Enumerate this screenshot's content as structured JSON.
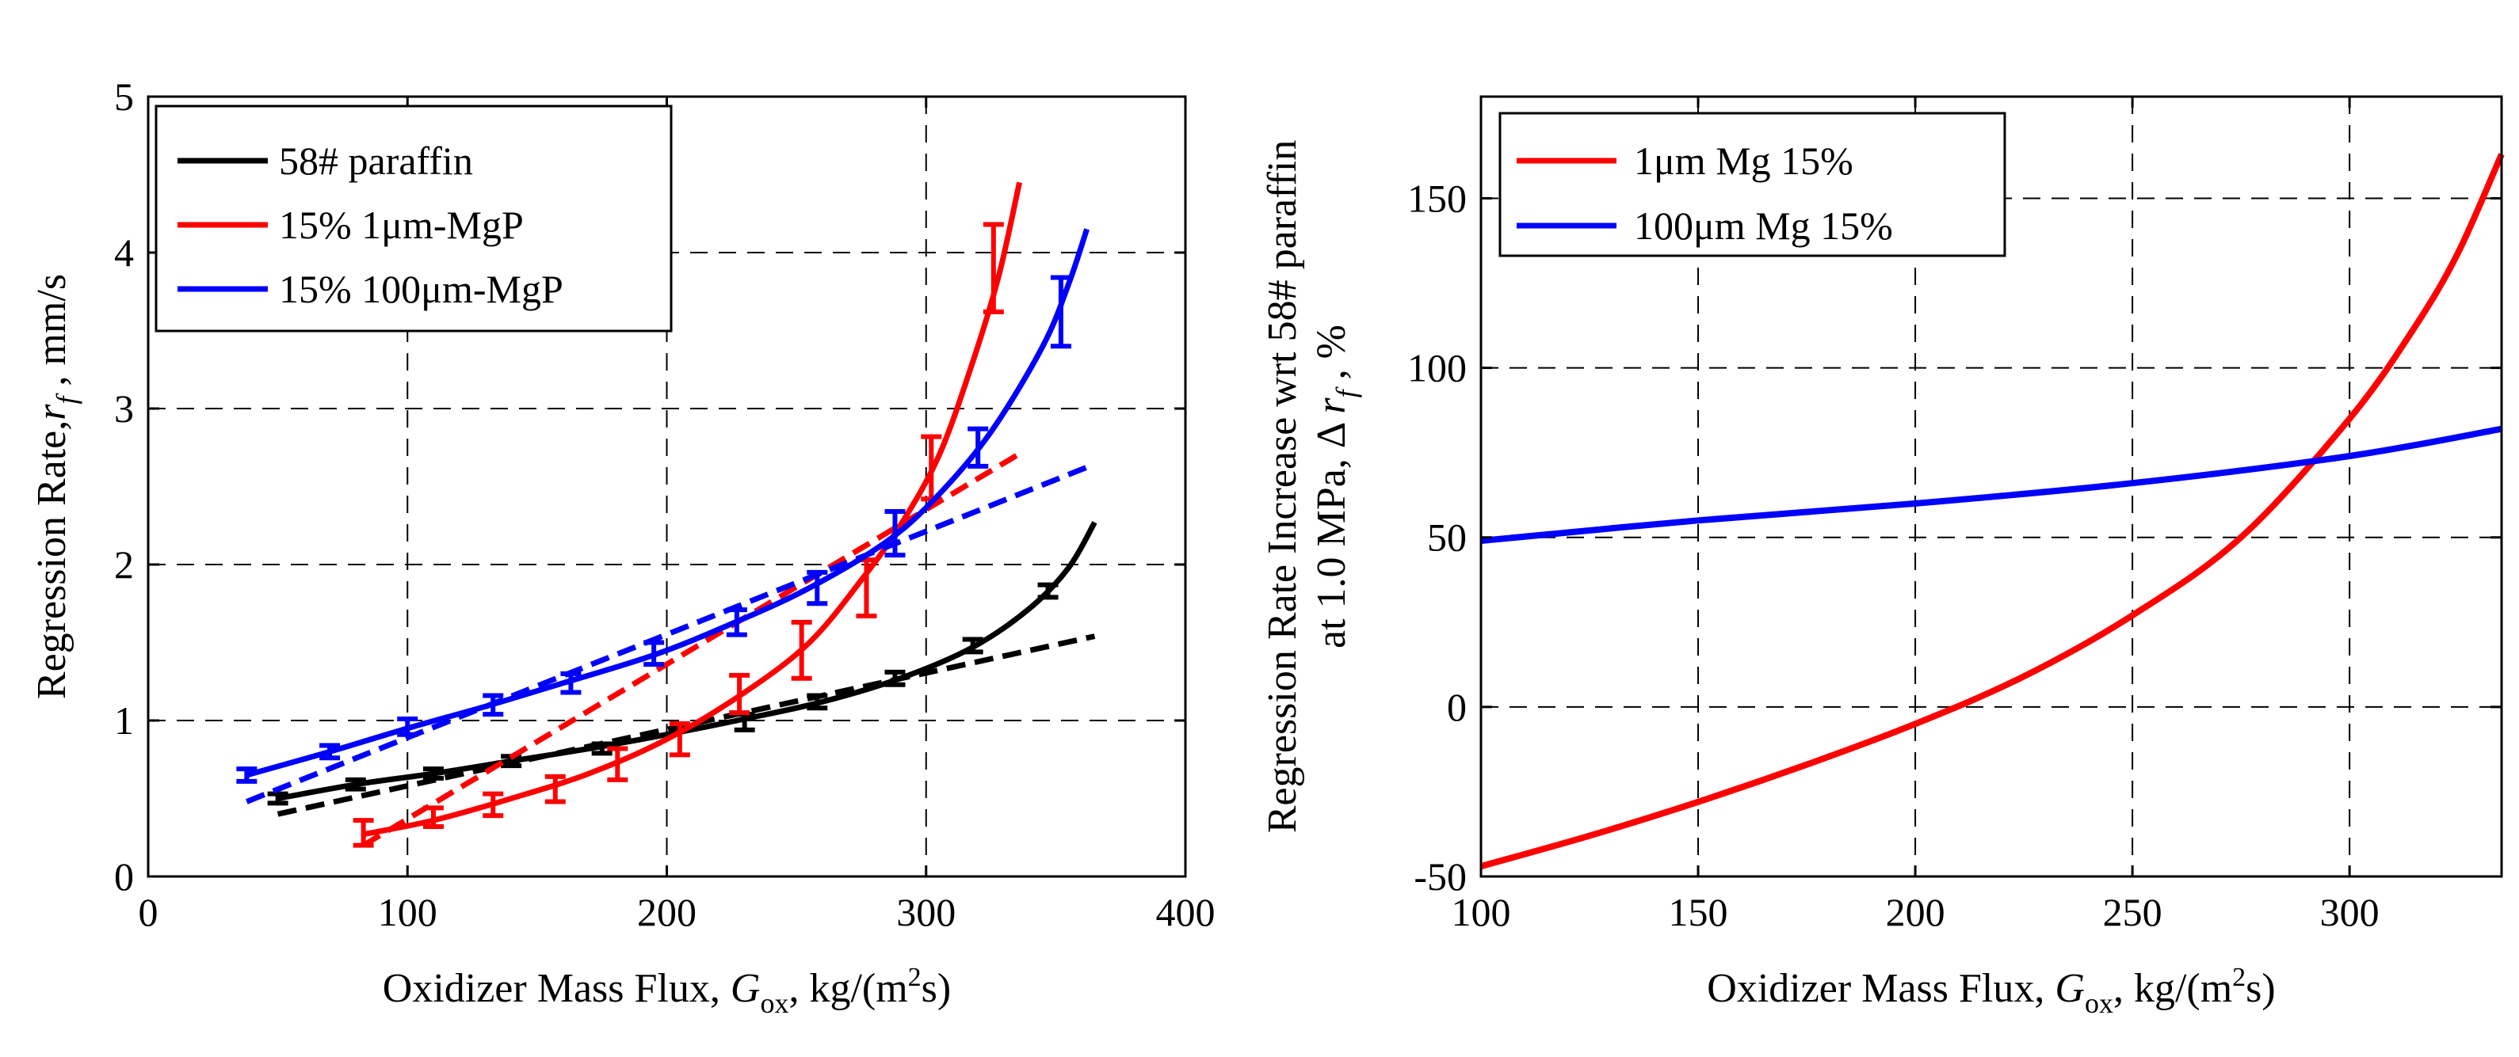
{
  "chart_data": [
    {
      "type": "line",
      "title": "",
      "xlabel_prefix": "Oxidizer Mass Flux, ",
      "xlabel_symbol": "G",
      "xlabel_sub": "ox",
      "xlabel_suffix_1": ", kg/(m",
      "xlabel_sup": "2",
      "xlabel_suffix_2": "s)",
      "ylabel_prefix": "Regression Rate,",
      "ylabel_symbol": "r",
      "ylabel_sub": "f",
      "ylabel_suffix": " , mm/s",
      "xlim": [
        0,
        400
      ],
      "ylim": [
        0,
        5
      ],
      "xticks": [
        0,
        100,
        200,
        300,
        400
      ],
      "yticks": [
        0,
        1,
        2,
        3,
        4,
        5
      ],
      "xtick_labels": [
        "0",
        "100",
        "200",
        "300",
        "400"
      ],
      "ytick_labels": [
        "0",
        "1",
        "2",
        "3",
        "4",
        "5"
      ],
      "grid": true,
      "legend_position": "top-left",
      "legend": [
        "58# paraffin",
        "15% 1μm-MgP",
        "15% 100μm-MgP"
      ],
      "series": [
        {
          "name": "58# paraffin",
          "color": "#000000",
          "smooth_x": [
            50,
            80,
            110,
            140,
            170,
            200,
            230,
            260,
            290,
            318,
            340,
            355,
            365
          ],
          "smooth_y": [
            0.5,
            0.59,
            0.66,
            0.74,
            0.82,
            0.91,
            1.01,
            1.12,
            1.27,
            1.47,
            1.72,
            1.98,
            2.27
          ],
          "fit_x": [
            50,
            365
          ],
          "fit_y": [
            0.4,
            1.54
          ],
          "markers_x": [
            50,
            80,
            110,
            140,
            175,
            230,
            258,
            288,
            318,
            347
          ],
          "markers_y": [
            0.5,
            0.59,
            0.66,
            0.74,
            0.82,
            0.99,
            1.12,
            1.27,
            1.48,
            1.83
          ],
          "err": [
            0.03,
            0.03,
            0.03,
            0.03,
            0.03,
            0.05,
            0.04,
            0.04,
            0.04,
            0.04
          ]
        },
        {
          "name": "15% 1μm-MgP",
          "color": "#ff0000",
          "smooth_x": [
            83,
            110,
            140,
            170,
            200,
            230,
            255,
            275,
            290,
            305,
            318,
            328,
            336
          ],
          "smooth_y": [
            0.27,
            0.36,
            0.5,
            0.66,
            0.88,
            1.18,
            1.5,
            1.9,
            2.25,
            2.7,
            3.3,
            3.85,
            4.45
          ],
          "fit_x": [
            83,
            335
          ],
          "fit_y": [
            0.2,
            2.7
          ],
          "markers_x": [
            83,
            110,
            133,
            157,
            181,
            205,
            228,
            252,
            277,
            302,
            326
          ],
          "markers_y": [
            0.28,
            0.38,
            0.46,
            0.56,
            0.72,
            0.88,
            1.17,
            1.45,
            1.85,
            2.62,
            3.9
          ],
          "err": [
            0.08,
            0.06,
            0.07,
            0.08,
            0.1,
            0.1,
            0.12,
            0.18,
            0.18,
            0.2,
            0.28
          ]
        },
        {
          "name": "15% 100μm-MgP",
          "color": "#0000ff",
          "smooth_x": [
            38,
            70,
            100,
            130,
            160,
            195,
            225,
            255,
            285,
            305,
            325,
            345,
            355,
            362
          ],
          "smooth_y": [
            0.65,
            0.8,
            0.95,
            1.09,
            1.24,
            1.42,
            1.62,
            1.85,
            2.15,
            2.45,
            2.85,
            3.4,
            3.8,
            4.15
          ],
          "fit_x": [
            38,
            363
          ],
          "fit_y": [
            0.48,
            2.63
          ],
          "markers_x": [
            38,
            70,
            100,
            133,
            163,
            195,
            227,
            258,
            288,
            320,
            352
          ],
          "markers_y": [
            0.65,
            0.8,
            0.96,
            1.1,
            1.24,
            1.43,
            1.63,
            1.85,
            2.2,
            2.75,
            3.62
          ],
          "err": [
            0.04,
            0.04,
            0.05,
            0.06,
            0.06,
            0.07,
            0.08,
            0.1,
            0.14,
            0.12,
            0.22
          ]
        }
      ]
    },
    {
      "type": "line",
      "title": "",
      "xlabel_prefix": "Oxidizer Mass Flux, ",
      "xlabel_symbol": "G",
      "xlabel_sub": "ox",
      "xlabel_suffix_1": ", kg/(m",
      "xlabel_sup": "2",
      "xlabel_suffix_2": "s)",
      "ylabel_line1": "Regression Rate Increase wrt 58# paraffin",
      "ylabel_line2_prefix": "at 1.0 MPa, Δ ",
      "ylabel_symbol": "r",
      "ylabel_sub": "f",
      "ylabel_suffix": " , %",
      "xlim": [
        100,
        335
      ],
      "ylim": [
        -50,
        180
      ],
      "xticks": [
        100,
        150,
        200,
        250,
        300
      ],
      "yticks": [
        -50,
        0,
        50,
        100,
        150
      ],
      "xtick_labels": [
        "100",
        "150",
        "200",
        "250",
        "300"
      ],
      "ytick_labels": [
        "-50",
        "0",
        "50",
        "100",
        "150"
      ],
      "grid": true,
      "legend_position": "top-left",
      "legend": [
        "1μm Mg 15%",
        "100μm Mg 15%"
      ],
      "series": [
        {
          "name": "1μm Mg 15%",
          "color": "#ff0000",
          "x": [
            100,
            125,
            150,
            175,
            200,
            225,
            250,
            275,
            300,
            315,
            325,
            335
          ],
          "y": [
            -47,
            -38,
            -28,
            -17,
            -5,
            9,
            27,
            50,
            85,
            112,
            134,
            163
          ]
        },
        {
          "name": "100μm Mg 15%",
          "color": "#0000ff",
          "x": [
            100,
            150,
            200,
            250,
            300,
            335
          ],
          "y": [
            49,
            55,
            60,
            66,
            74,
            82
          ]
        }
      ]
    }
  ]
}
